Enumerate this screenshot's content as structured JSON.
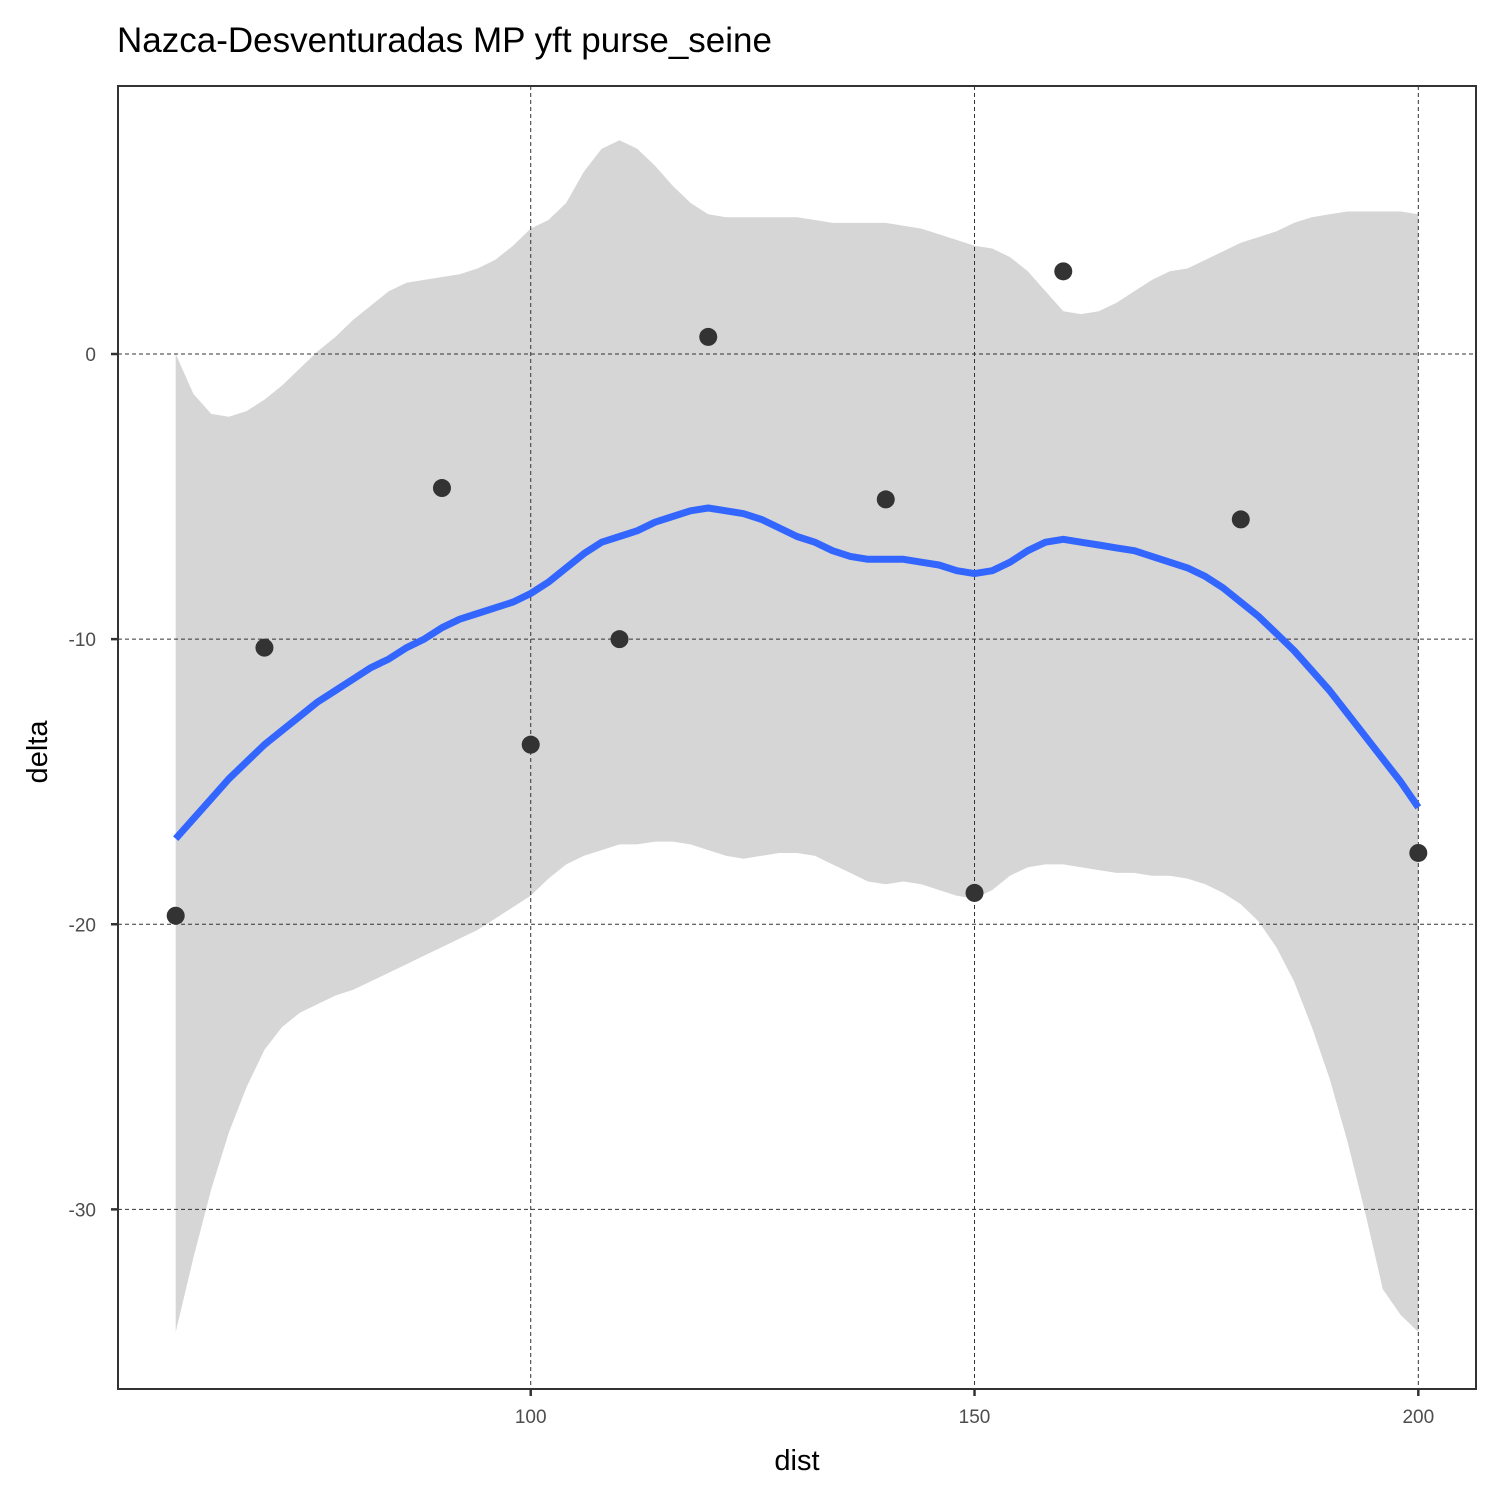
{
  "chart_data": {
    "type": "scatter",
    "title": "Nazca-Desventuradas MP yft purse_seine",
    "xlabel": "dist",
    "ylabel": "delta",
    "xlim": [
      53.5,
      206.5
    ],
    "ylim": [
      -36.3,
      9.4
    ],
    "x_ticks": [
      100,
      150,
      200
    ],
    "x_tick_labels": [
      "100",
      "150",
      "200"
    ],
    "y_ticks": [
      0,
      -10,
      -20,
      -30
    ],
    "y_tick_labels": [
      "0",
      "-10",
      "-20",
      "-30"
    ],
    "grid": true,
    "points": [
      {
        "x": 60,
        "y": -19.7
      },
      {
        "x": 70,
        "y": -10.3
      },
      {
        "x": 90,
        "y": -4.7
      },
      {
        "x": 100,
        "y": -13.7
      },
      {
        "x": 110,
        "y": -10.0
      },
      {
        "x": 120,
        "y": 0.6
      },
      {
        "x": 140,
        "y": -5.1
      },
      {
        "x": 150,
        "y": -18.9
      },
      {
        "x": 160,
        "y": 2.9
      },
      {
        "x": 180,
        "y": -5.8
      },
      {
        "x": 200,
        "y": -17.5
      }
    ],
    "smooth": {
      "method": "loess",
      "x": [
        60,
        62,
        64,
        66,
        68,
        70,
        72,
        74,
        76,
        78,
        80,
        82,
        84,
        86,
        88,
        90,
        92,
        94,
        96,
        98,
        100,
        102,
        104,
        106,
        108,
        110,
        112,
        114,
        116,
        118,
        120,
        122,
        124,
        126,
        128,
        130,
        132,
        134,
        136,
        138,
        140,
        142,
        144,
        146,
        148,
        150,
        152,
        154,
        156,
        158,
        160,
        162,
        164,
        166,
        168,
        170,
        172,
        174,
        176,
        178,
        180,
        182,
        184,
        186,
        188,
        190,
        192,
        194,
        196,
        198,
        200
      ],
      "fit": [
        -17.0,
        -16.3,
        -15.6,
        -14.9,
        -14.3,
        -13.7,
        -13.2,
        -12.7,
        -12.2,
        -11.8,
        -11.4,
        -11.0,
        -10.7,
        -10.3,
        -10.0,
        -9.6,
        -9.3,
        -9.1,
        -8.9,
        -8.7,
        -8.4,
        -8.0,
        -7.5,
        -7.0,
        -6.6,
        -6.4,
        -6.2,
        -5.9,
        -5.7,
        -5.5,
        -5.4,
        -5.5,
        -5.6,
        -5.8,
        -6.1,
        -6.4,
        -6.6,
        -6.9,
        -7.1,
        -7.2,
        -7.2,
        -7.2,
        -7.3,
        -7.4,
        -7.6,
        -7.7,
        -7.6,
        -7.3,
        -6.9,
        -6.6,
        -6.5,
        -6.6,
        -6.7,
        -6.8,
        -6.9,
        -7.1,
        -7.3,
        -7.5,
        -7.8,
        -8.2,
        -8.7,
        -9.2,
        -9.8,
        -10.4,
        -11.1,
        -11.8,
        -12.6,
        -13.4,
        -14.2,
        -15.0,
        -15.9
      ],
      "upper": [
        0.0,
        -1.4,
        -2.1,
        -2.2,
        -2.0,
        -1.6,
        -1.1,
        -0.5,
        0.1,
        0.6,
        1.2,
        1.7,
        2.2,
        2.5,
        2.6,
        2.7,
        2.8,
        3.0,
        3.3,
        3.8,
        4.4,
        4.7,
        5.3,
        6.4,
        7.2,
        7.5,
        7.2,
        6.6,
        5.9,
        5.3,
        4.9,
        4.8,
        4.8,
        4.8,
        4.8,
        4.8,
        4.7,
        4.6,
        4.6,
        4.6,
        4.6,
        4.5,
        4.4,
        4.2,
        4.0,
        3.8,
        3.7,
        3.4,
        2.9,
        2.2,
        1.5,
        1.4,
        1.5,
        1.8,
        2.2,
        2.6,
        2.9,
        3.0,
        3.3,
        3.6,
        3.9,
        4.1,
        4.3,
        4.6,
        4.8,
        4.9,
        5.0,
        5.0,
        5.0,
        5.0,
        4.9
      ],
      "lower": [
        -34.3,
        -31.7,
        -29.3,
        -27.3,
        -25.7,
        -24.4,
        -23.6,
        -23.1,
        -22.8,
        -22.5,
        -22.3,
        -22.0,
        -21.7,
        -21.4,
        -21.1,
        -20.8,
        -20.5,
        -20.2,
        -19.8,
        -19.4,
        -19.0,
        -18.4,
        -17.9,
        -17.6,
        -17.4,
        -17.2,
        -17.2,
        -17.1,
        -17.1,
        -17.2,
        -17.4,
        -17.6,
        -17.7,
        -17.6,
        -17.5,
        -17.5,
        -17.6,
        -17.9,
        -18.2,
        -18.5,
        -18.6,
        -18.5,
        -18.6,
        -18.8,
        -19.0,
        -19.1,
        -18.8,
        -18.3,
        -18.0,
        -17.9,
        -17.9,
        -18.0,
        -18.1,
        -18.2,
        -18.2,
        -18.3,
        -18.3,
        -18.4,
        -18.6,
        -18.9,
        -19.3,
        -19.9,
        -20.8,
        -22.0,
        -23.6,
        -25.4,
        -27.6,
        -30.1,
        -32.8,
        -33.7,
        -34.3
      ]
    },
    "colors": {
      "line": "#3366ff",
      "ribbon": "#d6d6d6",
      "points": "#333333",
      "grid": "#333333"
    }
  }
}
